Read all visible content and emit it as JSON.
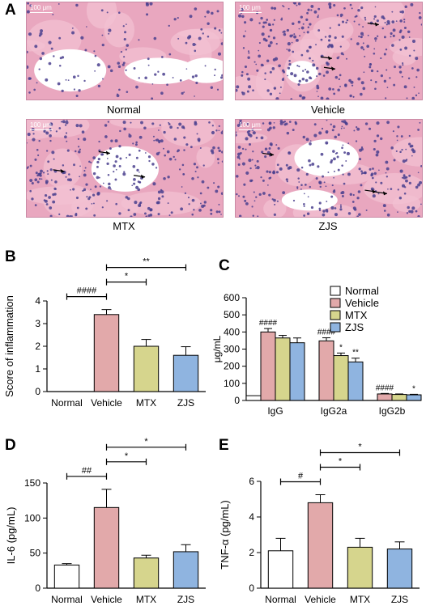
{
  "panels": {
    "A": "A",
    "B": "B",
    "C": "C",
    "D": "D",
    "E": "E"
  },
  "histology": [
    {
      "label": "Normal",
      "scale": "100 μm"
    },
    {
      "label": "Vehicle",
      "scale": "100 μm"
    },
    {
      "label": "MTX",
      "scale": "100 μm"
    },
    {
      "label": "ZJS",
      "scale": "100 μm"
    }
  ],
  "colors": {
    "Normal": "#ffffff",
    "Vehicle": "#e2a9aa",
    "MTX": "#d6d58d",
    "ZJS": "#8fb4e0",
    "tissue_pink": "#e9a7bf",
    "nuclei": "#4a3f8e"
  },
  "chart_data": [
    {
      "id": "B",
      "type": "bar",
      "categories": [
        "Normal",
        "Vehicle",
        "MTX",
        "ZJS"
      ],
      "values": [
        0,
        3.4,
        2.0,
        1.6
      ],
      "errors": [
        0,
        0.22,
        0.3,
        0.38
      ],
      "ylabel": "Score of inflammation",
      "ylim": [
        0,
        4
      ],
      "yticks": [
        "0",
        "1",
        "2",
        "3",
        "4"
      ],
      "significance": [
        {
          "from": "Normal",
          "to": "Vehicle",
          "label": "####"
        },
        {
          "from": "Vehicle",
          "to": "MTX",
          "label": "*"
        },
        {
          "from": "Vehicle",
          "to": "ZJS",
          "label": "**"
        }
      ]
    },
    {
      "id": "C",
      "type": "bar",
      "categories": [
        "IgG",
        "IgG2a",
        "IgG2b"
      ],
      "series": [
        {
          "name": "Normal",
          "values": [
            28,
            0,
            0
          ],
          "errors": [
            0,
            0,
            0
          ]
        },
        {
          "name": "Vehicle",
          "values": [
            400,
            348,
            38
          ],
          "errors": [
            20,
            18,
            3
          ]
        },
        {
          "name": "MTX",
          "values": [
            365,
            262,
            35
          ],
          "errors": [
            15,
            15,
            3
          ]
        },
        {
          "name": "ZJS",
          "values": [
            337,
            225,
            33
          ],
          "errors": [
            28,
            22,
            3
          ]
        }
      ],
      "ylabel": "μg/mL",
      "ylim": [
        0,
        600
      ],
      "yticks": [
        "0",
        "100",
        "200",
        "300",
        "400",
        "500",
        "600"
      ],
      "annotations": [
        {
          "category": "IgG",
          "series": "Vehicle",
          "label": "####"
        },
        {
          "category": "IgG2a",
          "series": "Vehicle",
          "label": "####"
        },
        {
          "category": "IgG2a",
          "series": "MTX",
          "label": "*"
        },
        {
          "category": "IgG2a",
          "series": "ZJS",
          "label": "**"
        },
        {
          "category": "IgG2b",
          "series": "Vehicle",
          "label": "####"
        },
        {
          "category": "IgG2b",
          "series": "ZJS",
          "label": "*"
        }
      ],
      "legend": "top-right"
    },
    {
      "id": "D",
      "type": "bar",
      "categories": [
        "Normal",
        "Vehicle",
        "MTX",
        "ZJS"
      ],
      "values": [
        33,
        115,
        43,
        52
      ],
      "errors": [
        2,
        26,
        4,
        10
      ],
      "ylabel": "IL-6 (pg/mL)",
      "ylim": [
        0,
        150
      ],
      "yticks": [
        "0",
        "50",
        "100",
        "150"
      ],
      "significance": [
        {
          "from": "Normal",
          "to": "Vehicle",
          "label": "##"
        },
        {
          "from": "Vehicle",
          "to": "MTX",
          "label": "*"
        },
        {
          "from": "Vehicle",
          "to": "ZJS",
          "label": "*"
        }
      ]
    },
    {
      "id": "E",
      "type": "bar",
      "categories": [
        "Normal",
        "Vehicle",
        "MTX",
        "ZJS"
      ],
      "values": [
        2.1,
        4.8,
        2.3,
        2.2
      ],
      "errors": [
        0.7,
        0.45,
        0.5,
        0.4
      ],
      "ylabel": "TNF-α (pg/mL)",
      "ylim": [
        0,
        6
      ],
      "yticks": [
        "0",
        "2",
        "4",
        "6"
      ],
      "significance": [
        {
          "from": "Normal",
          "to": "Vehicle",
          "label": "#"
        },
        {
          "from": "Vehicle",
          "to": "MTX",
          "label": "*"
        },
        {
          "from": "Vehicle",
          "to": "ZJS",
          "label": "*"
        }
      ]
    }
  ]
}
